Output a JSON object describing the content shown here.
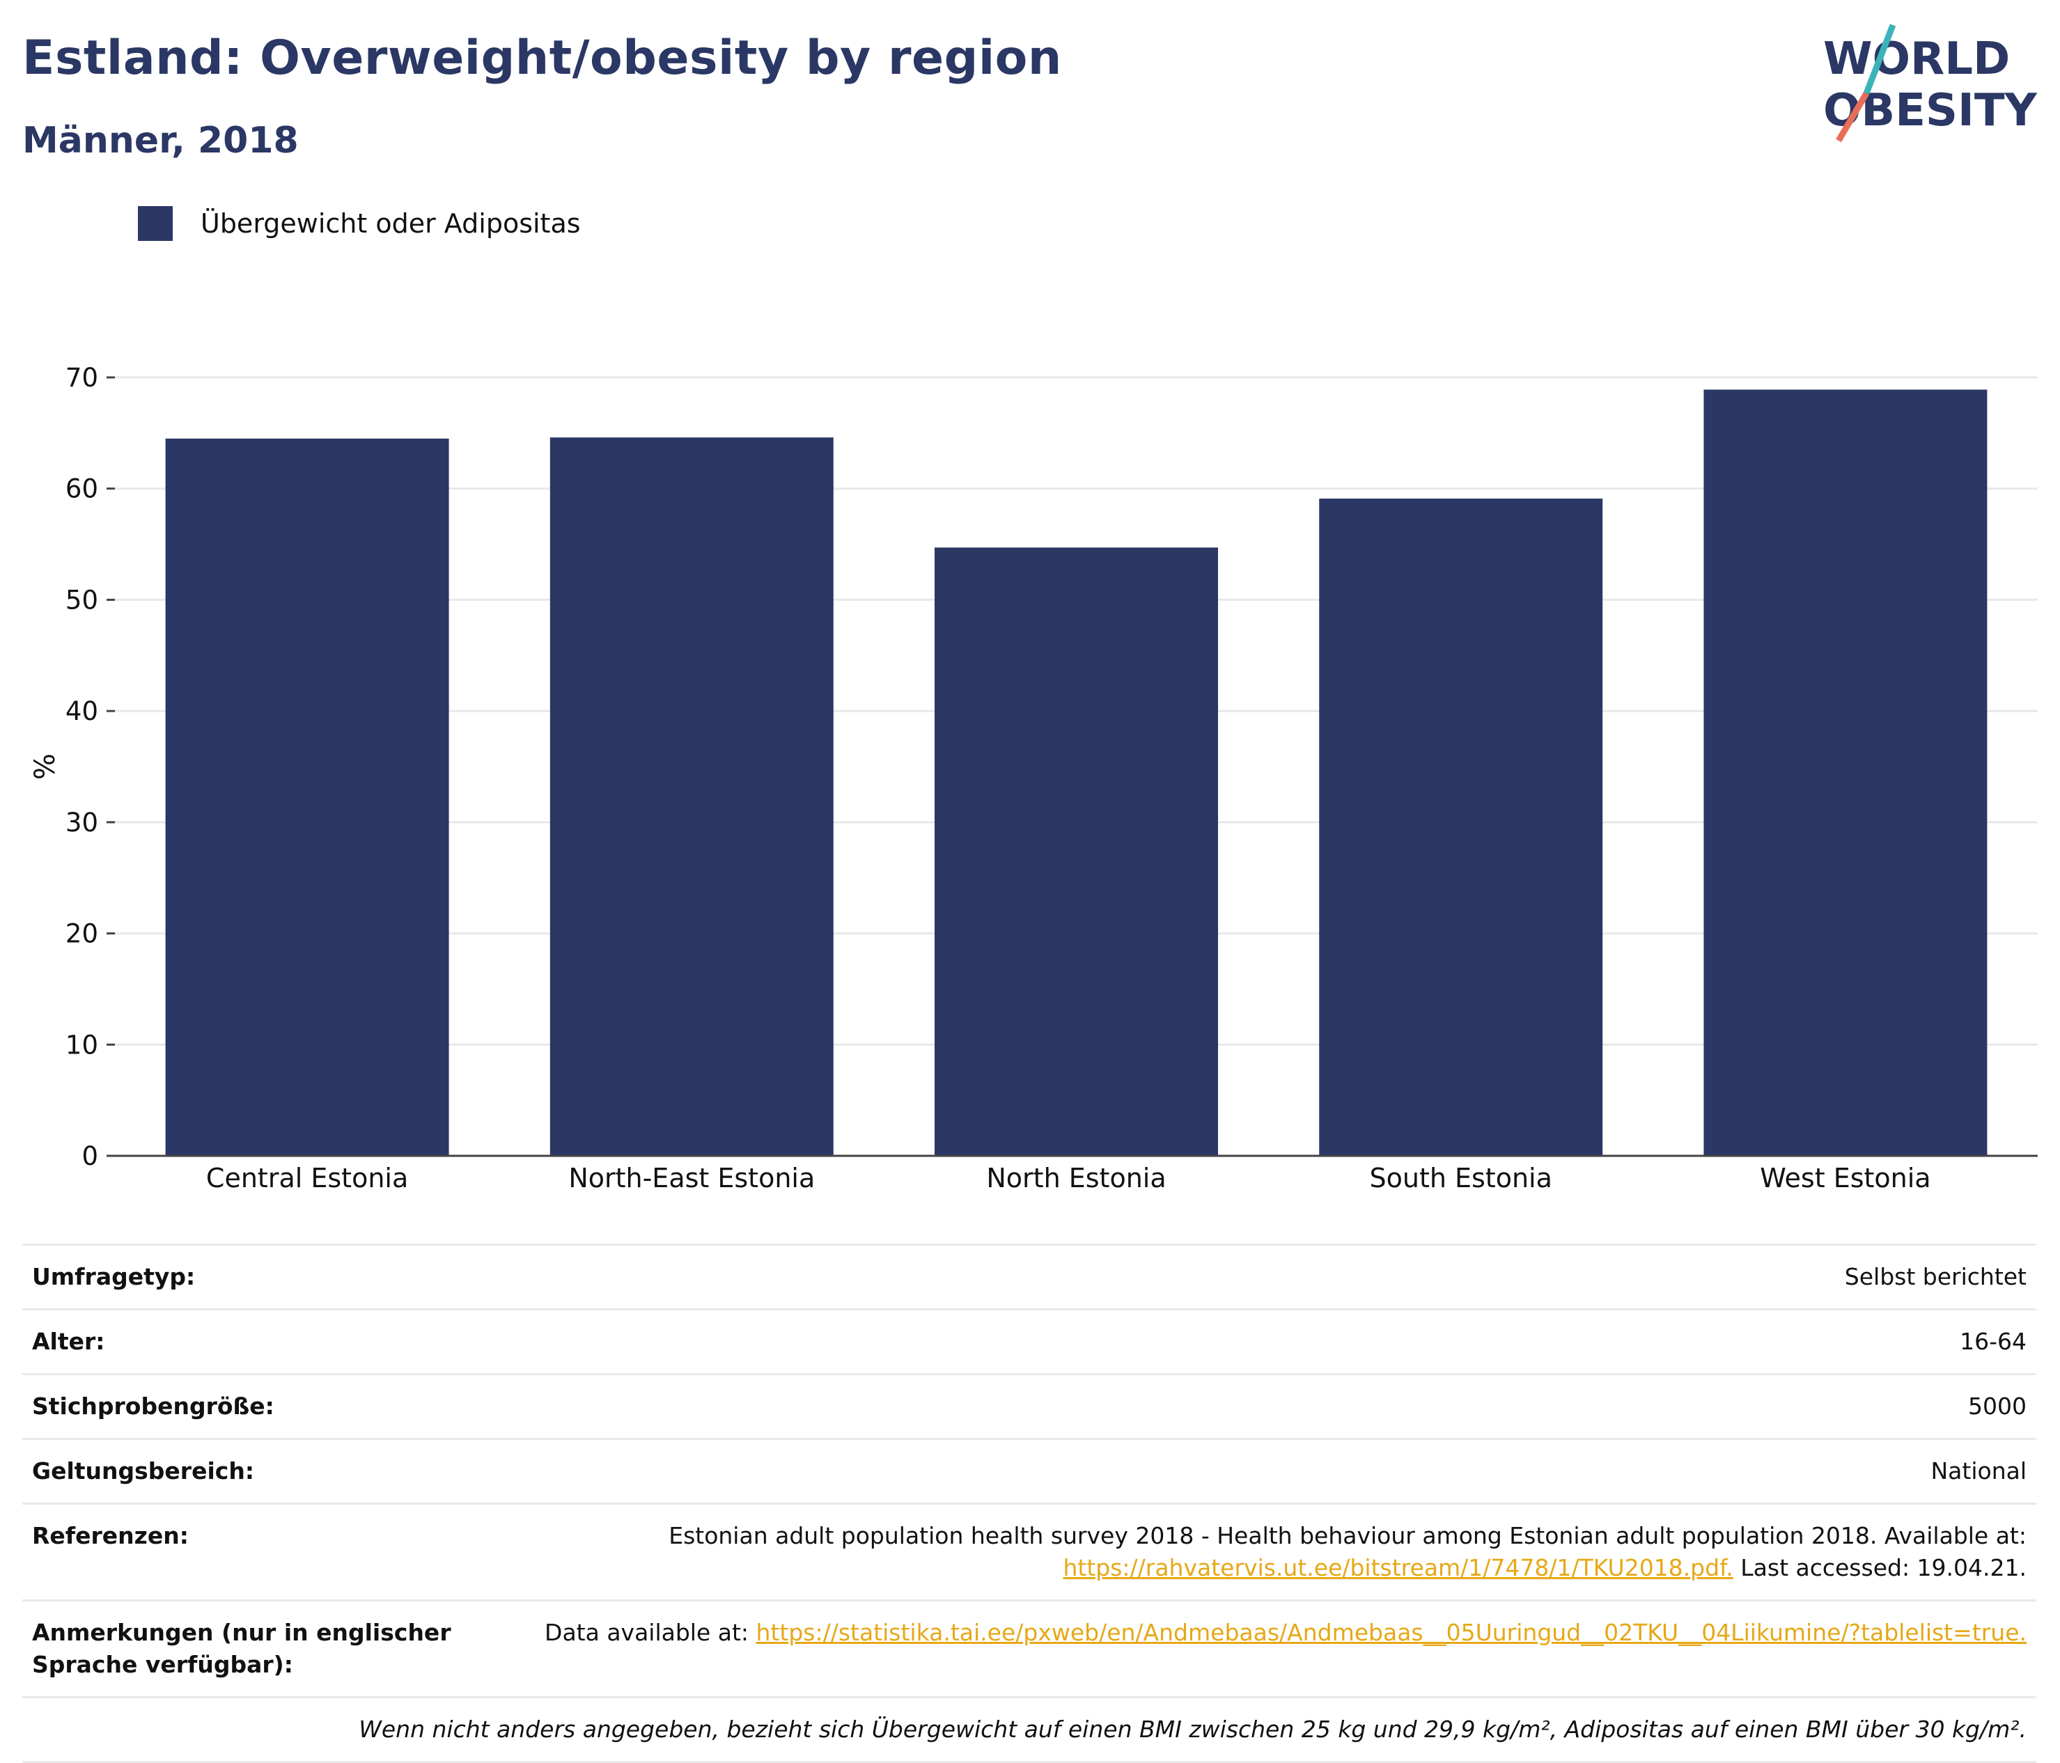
{
  "header": {
    "title": "Estland: Overweight/obesity by region",
    "subtitle": "Männer, 2018"
  },
  "logo": {
    "line1": "WORLD",
    "line2": "OBESITY"
  },
  "legend": {
    "label": "Übergewicht oder Adipositas",
    "color": "#2b3764"
  },
  "chart_data": {
    "type": "bar",
    "categories": [
      "Central Estonia",
      "North-East Estonia",
      "North Estonia",
      "South Estonia",
      "West Estonia"
    ],
    "series": [
      {
        "name": "Übergewicht oder Adipositas",
        "values": [
          64.5,
          64.6,
          54.7,
          59.1,
          68.9
        ],
        "color": "#2b3764"
      }
    ],
    "ylabel": "%",
    "ylim": [
      0,
      70
    ],
    "yticks": [
      0,
      10,
      20,
      30,
      40,
      50,
      60,
      70
    ],
    "grid": true
  },
  "meta": {
    "survey_type": {
      "label": "Umfragetyp:",
      "value": "Selbst berichtet"
    },
    "age": {
      "label": "Alter:",
      "value": "16-64"
    },
    "sample_size": {
      "label": "Stichprobengröße:",
      "value": "5000"
    },
    "scope": {
      "label": "Geltungsbereich:",
      "value": "National"
    },
    "references": {
      "label": "Referenzen:",
      "text": "Estonian adult population health survey 2018 - Health behaviour among Estonian adult population 2018. Available at:",
      "link": "https://rahvatervis.ut.ee/bitstream/1/7478/1/TKU2018.pdf.",
      "suffix": " Last accessed: 19.04.21."
    },
    "notes": {
      "label": "Anmerkungen (nur in englischer Sprache verfügbar):",
      "text": "Data available at: ",
      "link": "https://statistika.tai.ee/pxweb/en/Andmebaas/Andmebaas__05Uuringud__02TKU__04Liikumine/?tablelist=true."
    },
    "footnote": "Wenn nicht anders angegeben, bezieht sich Übergewicht auf einen BMI zwischen 25 kg und 29,9 kg/m², Adipositas auf einen BMI über 30 kg/m²."
  }
}
